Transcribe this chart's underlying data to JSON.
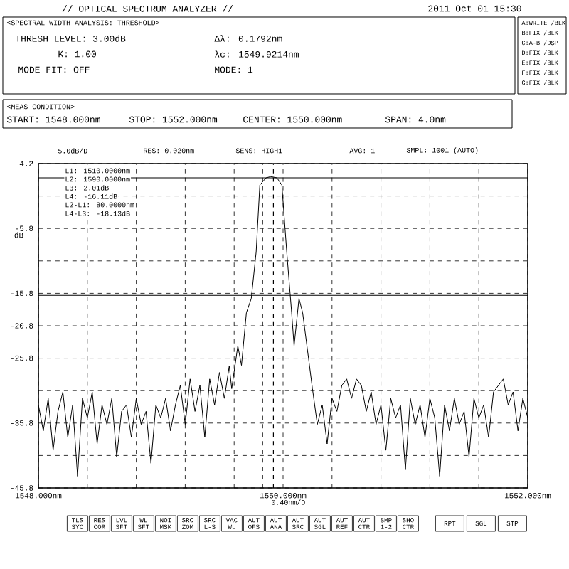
{
  "chart_data": {
    "type": "line",
    "title": "// OPTICAL SPECTRUM ANALYZER //",
    "ylabel": "dB",
    "xlim": [
      1548,
      1552
    ],
    "ylim": [
      -45.8,
      4.2
    ],
    "xticks": [
      {
        "value": 1548,
        "label": "1548.000nm"
      },
      {
        "value": 1548.4,
        "label": null
      },
      {
        "value": 1548.8,
        "label": null
      },
      {
        "value": 1549.2,
        "label": null
      },
      {
        "value": 1549.6,
        "label": null
      },
      {
        "value": 1550,
        "label": "1550.000nm"
      },
      {
        "value": 1550.4,
        "label": null
      },
      {
        "value": 1550.8,
        "label": null
      },
      {
        "value": 1551.2,
        "label": null
      },
      {
        "value": 1551.6,
        "label": null
      },
      {
        "value": 1552,
        "label": "1552.000nm"
      }
    ],
    "yticks": [
      4.2,
      {
        "value": -0.8,
        "label": null
      },
      -5.8,
      {
        "value": -10.8,
        "label": null
      },
      -15.8,
      -20.8,
      -25.8,
      {
        "value": -30.8,
        "label": null
      },
      -35.8,
      {
        "value": -40.8,
        "label": null
      },
      -45.8
    ],
    "grid": true,
    "marker": "none",
    "series": [
      {
        "color": "#000000",
        "x": [
          1548.0,
          1548.04,
          1548.08,
          1548.12,
          1548.16,
          1548.2,
          1548.24,
          1548.28,
          1548.32,
          1548.36,
          1548.4,
          1548.44,
          1548.48,
          1548.52,
          1548.56,
          1548.6,
          1548.64,
          1548.68,
          1548.72,
          1548.76,
          1548.8,
          1548.84,
          1548.88,
          1548.92,
          1548.96,
          1549.0,
          1549.04,
          1549.08,
          1549.12,
          1549.16,
          1549.2,
          1549.24,
          1549.28,
          1549.32,
          1549.36,
          1549.4,
          1549.44,
          1549.48,
          1549.52,
          1549.56,
          1549.58,
          1549.63,
          1549.66,
          1549.7,
          1549.74,
          1549.78,
          1549.81,
          1549.86,
          1549.9,
          1549.95,
          1549.99,
          1550.03,
          1550.07,
          1550.09,
          1550.13,
          1550.16,
          1550.21,
          1550.24,
          1550.28,
          1550.32,
          1550.36,
          1550.4,
          1550.44,
          1550.48,
          1550.52,
          1550.56,
          1550.6,
          1550.64,
          1550.68,
          1550.72,
          1550.76,
          1550.8,
          1550.84,
          1550.88,
          1550.92,
          1550.96,
          1551.0,
          1551.04,
          1551.08,
          1551.12,
          1551.16,
          1551.2,
          1551.24,
          1551.28,
          1551.32,
          1551.36,
          1551.4,
          1551.44,
          1551.48,
          1551.52,
          1551.56,
          1551.6,
          1551.64,
          1551.68,
          1551.72,
          1551.76,
          1551.8,
          1551.84,
          1551.88,
          1551.92,
          1551.96,
          1552.0
        ],
        "values": [
          -33,
          -37,
          -32,
          -40,
          -34,
          -31,
          -38,
          -33,
          -44,
          -32,
          -35,
          -31,
          -39,
          -33,
          -36,
          -32,
          -41,
          -34,
          -33,
          -38,
          -32,
          -36,
          -34,
          -42,
          -33,
          -35,
          -32,
          -37,
          -33,
          -30,
          -36,
          -29,
          -34,
          -30,
          -38,
          -29,
          -33,
          -28,
          -32,
          -27,
          -30.5,
          -23.9,
          -26.9,
          -18.8,
          -16.6,
          -9.4,
          0.9,
          2.0,
          2.2,
          2.0,
          0.9,
          -9.4,
          -18.8,
          -23.9,
          -16.6,
          -18.8,
          -26.1,
          -30.5,
          -36,
          -33,
          -39,
          -32,
          -34,
          -30,
          -29,
          -32,
          -29,
          -30,
          -34,
          -31,
          -36,
          -33,
          -40,
          -32,
          -35,
          -33,
          -43,
          -32,
          -36,
          -33,
          -38,
          -32,
          -35,
          -44,
          -33,
          -37,
          -32,
          -36,
          -34,
          -41,
          -32,
          -35,
          -33,
          -38,
          -31,
          -30,
          -29,
          -33,
          -31,
          -37,
          -32,
          -35
        ]
      }
    ],
    "ref_lines": [
      {
        "axis": "y",
        "value": 2.01,
        "line_style": "solid"
      },
      {
        "axis": "y",
        "value": -16.11,
        "line_style": "solid"
      },
      {
        "axis": "x",
        "value": 1549.832,
        "line_style": "dashed"
      },
      {
        "axis": "x",
        "value": 1549.921,
        "line_style": "dashed"
      }
    ],
    "annotations": [
      "2011 Oct 01 15:30",
      "<SPECTRAL WIDTH ANALYSIS: THRESHOLD>",
      "THRESH LEVEL: 3.00dB",
      "K: 1.00",
      "MODE FIT: OFF",
      "Δλ: 0.1792nm",
      "λc: 1549.9214nm",
      "MODE: 1",
      "A:WRITE /BLK",
      "B:FIX /BLK",
      "C:A-B /DSP",
      "D:FIX /BLK",
      "E:FIX /BLK",
      "F:FIX /BLK",
      "G:FIX /BLK",
      "<MEAS CONDITION>",
      "START: 1548.000nm",
      "STOP: 1552.000nm",
      "CENTER: 1550.000nm",
      "SPAN: 4.0nm",
      "5.0dB/D",
      "RES: 0.020nm",
      "SENS: HIGH1",
      "AVG: 1",
      "SMPL: 1001 (AUTO)",
      "L1: 1510.0000nm",
      "L2: 1590.0000nm",
      "L3: 2.01dB",
      "L4: -16.11dB",
      "L2-L1: 80.0000nm",
      "L4-L3: -18.13dB",
      "0.40nm/D",
      "TLS SYC",
      "RES COR",
      "LVL SFT",
      "WL SFT",
      "NOI MSK",
      "SRC ZOM",
      "SRC L-S",
      "VAC WL",
      "AUT OFS",
      "AUT ANA",
      "AUT SRC",
      "AUT SGL",
      "AUT REF",
      "AUT CTR",
      "SMP 1-2",
      "SHO CTR",
      "RPT",
      "SGL",
      "STP"
    ]
  }
}
